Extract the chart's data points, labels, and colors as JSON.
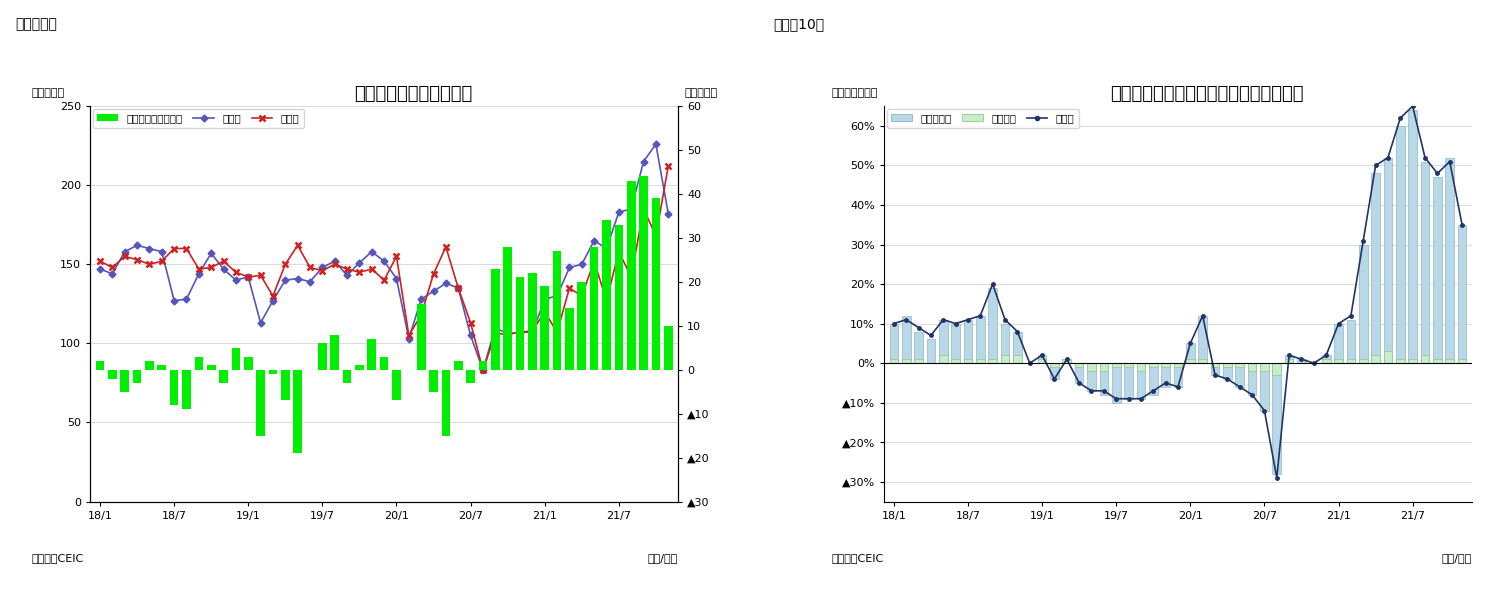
{
  "chart1": {
    "title": "インドネシア　貿易収支",
    "header": "（図表９）",
    "ylabel_left": "（億ドル）",
    "ylabel_right": "（億ドル）",
    "xlabel": "（年/月）",
    "source": "（資料）CEIC",
    "xtick_labels": [
      "18/1",
      "18/7",
      "19/1",
      "19/7",
      "20/1",
      "20/7",
      "21/1",
      "21/7"
    ],
    "ylim_left": [
      0,
      250
    ],
    "ylim_right": [
      -30,
      60
    ],
    "legend_labels": [
      "貿易収支（右目盛）",
      "輸出額",
      "輸入額"
    ],
    "bar_color": "#00EE00",
    "export_color": "#5555BB",
    "import_color": "#CC2222",
    "trade_balance": [
      2,
      -2,
      -5,
      -3,
      2,
      1,
      -8,
      -9,
      3,
      1,
      -3,
      5,
      3,
      -15,
      -1,
      -7,
      -19,
      0,
      6,
      8,
      -3,
      1,
      7,
      3,
      -7,
      0,
      15,
      -5,
      -15,
      2,
      -3,
      2,
      23,
      28,
      21,
      22,
      19,
      27,
      14,
      20,
      28,
      34,
      33,
      43,
      44,
      39,
      10
    ],
    "exports": [
      147,
      144,
      158,
      162,
      160,
      158,
      127,
      128,
      144,
      157,
      147,
      140,
      142,
      113,
      127,
      140,
      141,
      139,
      148,
      152,
      143,
      151,
      158,
      152,
      141,
      103,
      128,
      133,
      138,
      135,
      105,
      83,
      110,
      106,
      107,
      107,
      128,
      130,
      148,
      150,
      165,
      160,
      183,
      185,
      215,
      226,
      182
    ],
    "imports": [
      152,
      148,
      155,
      153,
      150,
      152,
      160,
      160,
      147,
      148,
      152,
      145,
      142,
      143,
      130,
      150,
      162,
      148,
      146,
      150,
      147,
      145,
      147,
      140,
      155,
      105,
      118,
      144,
      161,
      135,
      113,
      83,
      106,
      106,
      107,
      108,
      120,
      107,
      135,
      130,
      152,
      127,
      158,
      142,
      185,
      168,
      212
    ]
  },
  "chart2": {
    "title": "インドネシア　輸出の伸び率（品目別）",
    "header": "（図表10）",
    "ylabel_left": "（前年同月比）",
    "xlabel": "（年/月）",
    "source": "（資料）CEIC",
    "xtick_labels": [
      "18/1",
      "18/7",
      "19/1",
      "19/7",
      "20/1",
      "20/7",
      "21/1",
      "21/7"
    ],
    "ylim": [
      -0.35,
      0.65
    ],
    "legend_labels": [
      "非石油ガス",
      "石油ガス",
      "輸出額"
    ],
    "bar_color_non_oil": "#B8D8E8",
    "bar_color_oil": "#C8EEC8",
    "bar_edge_non_oil": "#7AAABB",
    "bar_edge_oil": "#88BB88",
    "line_color": "#223366",
    "non_oil_gas": [
      0.1,
      0.12,
      0.08,
      0.06,
      0.11,
      0.1,
      0.11,
      0.12,
      0.19,
      0.1,
      0.08,
      0.0,
      0.02,
      -0.04,
      0.01,
      -0.05,
      -0.07,
      -0.08,
      -0.1,
      -0.09,
      -0.09,
      -0.08,
      -0.06,
      -0.06,
      0.05,
      0.12,
      -0.03,
      -0.04,
      -0.06,
      -0.08,
      -0.12,
      -0.28,
      0.02,
      0.01,
      0.0,
      0.02,
      0.1,
      0.11,
      0.3,
      0.48,
      0.52,
      0.6,
      0.64,
      0.51,
      0.47,
      0.52,
      0.35
    ],
    "oil_gas": [
      0.01,
      0.01,
      0.01,
      0.0,
      0.02,
      0.01,
      0.01,
      0.01,
      0.01,
      0.02,
      0.02,
      0.0,
      0.01,
      -0.01,
      0.01,
      -0.01,
      -0.02,
      -0.02,
      -0.01,
      -0.01,
      -0.02,
      -0.01,
      -0.01,
      -0.01,
      0.01,
      0.01,
      -0.01,
      -0.01,
      -0.01,
      -0.02,
      -0.02,
      -0.03,
      0.01,
      0.0,
      0.0,
      0.01,
      0.01,
      0.01,
      0.01,
      0.02,
      0.03,
      0.01,
      0.01,
      0.02,
      0.01,
      0.01,
      0.01
    ],
    "total_exports": [
      0.1,
      0.11,
      0.09,
      0.07,
      0.11,
      0.1,
      0.11,
      0.12,
      0.2,
      0.11,
      0.08,
      0.0,
      0.02,
      -0.04,
      0.01,
      -0.05,
      -0.07,
      -0.07,
      -0.09,
      -0.09,
      -0.09,
      -0.07,
      -0.05,
      -0.06,
      0.05,
      0.12,
      -0.03,
      -0.04,
      -0.06,
      -0.08,
      -0.12,
      -0.29,
      0.02,
      0.01,
      0.0,
      0.02,
      0.1,
      0.12,
      0.31,
      0.5,
      0.52,
      0.62,
      0.65,
      0.52,
      0.48,
      0.51,
      0.35
    ]
  }
}
